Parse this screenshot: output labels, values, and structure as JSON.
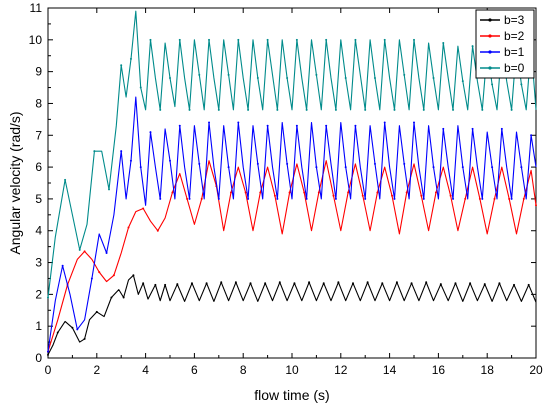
{
  "chart_data": {
    "type": "line",
    "title": "",
    "xlabel": "flow time (s)",
    "ylabel": "Angular velocity (rad/s)",
    "xlim": [
      0,
      20
    ],
    "ylim": [
      0,
      11
    ],
    "xticks": [
      0,
      2,
      4,
      6,
      8,
      10,
      12,
      14,
      16,
      18,
      20
    ],
    "yticks": [
      0,
      1,
      2,
      3,
      4,
      5,
      6,
      7,
      8,
      9,
      10,
      11
    ],
    "grid": false,
    "legend": {
      "position": "top-right"
    },
    "series": [
      {
        "name": "b=3",
        "color": "#000000",
        "x": [
          0,
          0.2,
          0.4,
          0.7,
          1.0,
          1.3,
          1.5,
          1.7,
          2.0,
          2.3,
          2.6,
          2.9,
          3.1,
          3.3,
          3.5,
          3.7,
          3.9,
          4.1,
          4.4,
          4.6,
          4.8,
          5.0,
          5.3,
          5.6,
          5.9,
          6.2,
          6.5,
          6.8,
          7.1,
          7.4,
          7.7,
          8.0,
          8.3,
          8.6,
          8.9,
          9.2,
          9.5,
          9.8,
          10.1,
          10.4,
          10.7,
          11.0,
          11.3,
          11.6,
          11.9,
          12.2,
          12.5,
          12.8,
          13.1,
          13.4,
          13.7,
          14.0,
          14.3,
          14.6,
          14.9,
          15.2,
          15.5,
          15.8,
          16.1,
          16.4,
          16.7,
          17.0,
          17.3,
          17.6,
          17.9,
          18.2,
          18.5,
          18.8,
          19.1,
          19.4,
          19.7,
          20.0
        ],
        "y": [
          0.1,
          0.4,
          0.8,
          1.15,
          0.95,
          0.5,
          0.6,
          1.2,
          1.45,
          1.3,
          1.9,
          2.15,
          1.9,
          2.45,
          2.6,
          2.0,
          2.35,
          1.85,
          2.3,
          1.8,
          2.3,
          1.8,
          2.32,
          1.78,
          2.35,
          1.8,
          2.35,
          1.78,
          2.38,
          1.8,
          2.38,
          1.8,
          2.35,
          1.78,
          2.35,
          1.8,
          2.38,
          1.8,
          2.35,
          1.8,
          2.38,
          1.8,
          2.35,
          1.8,
          2.38,
          1.8,
          2.35,
          1.8,
          2.38,
          1.8,
          2.35,
          1.8,
          2.38,
          1.8,
          2.35,
          1.8,
          2.38,
          1.8,
          2.32,
          1.8,
          2.35,
          1.78,
          2.35,
          1.8,
          2.32,
          1.78,
          2.35,
          1.8,
          2.3,
          1.78,
          2.3,
          1.75
        ]
      },
      {
        "name": "b=2",
        "color": "#ff0000",
        "x": [
          0,
          0.4,
          0.8,
          1.2,
          1.5,
          1.8,
          2.1,
          2.4,
          2.7,
          3.0,
          3.3,
          3.6,
          3.9,
          4.2,
          4.5,
          4.8,
          5.1,
          5.4,
          5.7,
          6.0,
          6.3,
          6.6,
          6.9,
          7.2,
          7.5,
          7.8,
          8.1,
          8.4,
          8.7,
          9.0,
          9.3,
          9.6,
          9.9,
          10.2,
          10.5,
          10.8,
          11.1,
          11.4,
          11.7,
          12.0,
          12.3,
          12.6,
          12.9,
          13.2,
          13.5,
          13.8,
          14.1,
          14.4,
          14.7,
          15.0,
          15.3,
          15.6,
          15.9,
          16.2,
          16.5,
          16.8,
          17.1,
          17.4,
          17.7,
          18.0,
          18.3,
          18.6,
          18.9,
          19.2,
          19.5,
          19.8,
          20.0
        ],
        "y": [
          0.2,
          1.2,
          2.3,
          3.1,
          3.35,
          3.1,
          2.7,
          2.4,
          2.6,
          3.3,
          4.1,
          4.6,
          4.7,
          4.3,
          4.0,
          4.4,
          5.2,
          5.8,
          5.0,
          4.2,
          5.0,
          6.2,
          5.4,
          4.0,
          5.2,
          6.0,
          5.2,
          4.0,
          5.2,
          6.0,
          5.1,
          3.9,
          5.2,
          6.1,
          5.2,
          4.0,
          5.2,
          6.2,
          5.1,
          4.0,
          5.2,
          6.1,
          5.1,
          4.0,
          5.2,
          6.0,
          5.1,
          3.9,
          5.2,
          6.1,
          5.1,
          4.0,
          5.2,
          6.0,
          5.1,
          4.0,
          5.0,
          6.0,
          5.0,
          3.9,
          5.0,
          6.0,
          5.0,
          3.9,
          5.0,
          5.9,
          4.8
        ]
      },
      {
        "name": "b=1",
        "color": "#0000ff",
        "x": [
          0,
          0.3,
          0.6,
          0.9,
          1.2,
          1.5,
          1.8,
          2.1,
          2.4,
          2.7,
          3.0,
          3.2,
          3.4,
          3.6,
          3.8,
          4.0,
          4.2,
          4.4,
          4.6,
          4.8,
          5.0,
          5.2,
          5.4,
          5.6,
          5.8,
          6.0,
          6.2,
          6.4,
          6.6,
          6.8,
          7.0,
          7.2,
          7.4,
          7.6,
          7.8,
          8.0,
          8.2,
          8.4,
          8.6,
          8.8,
          9.0,
          9.2,
          9.4,
          9.6,
          9.8,
          10.0,
          10.2,
          10.4,
          10.6,
          10.8,
          11.0,
          11.2,
          11.4,
          11.6,
          11.8,
          12.0,
          12.2,
          12.4,
          12.6,
          12.8,
          13.0,
          13.2,
          13.4,
          13.6,
          13.8,
          14.0,
          14.2,
          14.4,
          14.6,
          14.8,
          15.0,
          15.2,
          15.4,
          15.6,
          15.8,
          16.0,
          16.2,
          16.4,
          16.6,
          16.8,
          17.0,
          17.2,
          17.4,
          17.6,
          17.8,
          18.0,
          18.2,
          18.4,
          18.6,
          18.8,
          19.0,
          19.2,
          19.4,
          19.6,
          19.8,
          20.0
        ],
        "y": [
          0.2,
          1.8,
          2.9,
          2.0,
          0.9,
          1.2,
          2.5,
          3.9,
          3.3,
          4.5,
          6.5,
          5.0,
          6.2,
          8.2,
          6.0,
          4.8,
          7.1,
          6.0,
          5.0,
          7.2,
          6.2,
          5.0,
          7.3,
          6.0,
          5.0,
          7.3,
          6.1,
          5.0,
          7.4,
          6.0,
          5.0,
          7.3,
          6.0,
          5.0,
          7.4,
          6.0,
          5.0,
          7.3,
          6.1,
          5.0,
          7.3,
          6.0,
          5.0,
          7.4,
          6.1,
          5.0,
          7.3,
          6.0,
          5.0,
          7.4,
          6.0,
          5.0,
          7.3,
          6.1,
          5.0,
          7.4,
          6.0,
          5.0,
          7.3,
          6.0,
          5.0,
          7.3,
          6.1,
          5.0,
          7.4,
          6.0,
          5.0,
          7.3,
          6.1,
          5.0,
          7.4,
          6.0,
          5.0,
          7.3,
          6.0,
          5.0,
          7.2,
          6.0,
          5.0,
          7.3,
          6.0,
          5.0,
          7.2,
          6.0,
          5.0,
          7.1,
          6.0,
          5.0,
          7.2,
          6.0,
          5.0,
          7.1,
          6.0,
          5.0,
          7.0,
          6.0
        ]
      },
      {
        "name": "b=0",
        "color": "#008b8b",
        "x": [
          0,
          0.3,
          0.7,
          1.0,
          1.3,
          1.6,
          1.9,
          2.2,
          2.5,
          2.8,
          3.0,
          3.2,
          3.4,
          3.6,
          3.8,
          4.0,
          4.2,
          4.4,
          4.6,
          4.8,
          5.0,
          5.2,
          5.4,
          5.6,
          5.8,
          6.0,
          6.2,
          6.4,
          6.6,
          6.8,
          7.0,
          7.2,
          7.4,
          7.6,
          7.8,
          8.0,
          8.2,
          8.4,
          8.6,
          8.8,
          9.0,
          9.2,
          9.4,
          9.6,
          9.8,
          10.0,
          10.2,
          10.4,
          10.6,
          10.8,
          11.0,
          11.2,
          11.4,
          11.6,
          11.8,
          12.0,
          12.2,
          12.4,
          12.6,
          12.8,
          13.0,
          13.2,
          13.4,
          13.6,
          13.8,
          14.0,
          14.2,
          14.4,
          14.6,
          14.8,
          15.0,
          15.2,
          15.4,
          15.6,
          15.8,
          16.0,
          16.2,
          16.4,
          16.6,
          16.8,
          17.0,
          17.2,
          17.4,
          17.6,
          17.8,
          18.0,
          18.2,
          18.4,
          18.6,
          18.8,
          19.0,
          19.2,
          19.4,
          19.6,
          19.8,
          20.0
        ],
        "y": [
          1.9,
          3.8,
          5.6,
          4.5,
          3.4,
          4.2,
          6.5,
          6.5,
          5.3,
          7.3,
          9.2,
          8.2,
          9.4,
          10.9,
          8.5,
          7.8,
          10.0,
          8.8,
          7.8,
          9.9,
          8.8,
          7.9,
          10.0,
          8.8,
          7.8,
          10.0,
          8.9,
          7.8,
          10.0,
          8.8,
          7.8,
          10.0,
          8.9,
          7.8,
          10.0,
          8.8,
          7.8,
          10.0,
          8.8,
          7.8,
          10.0,
          8.9,
          7.8,
          10.0,
          8.8,
          7.8,
          10.0,
          8.8,
          7.8,
          10.0,
          8.9,
          7.8,
          10.0,
          8.8,
          7.8,
          10.0,
          8.8,
          7.8,
          10.0,
          8.9,
          7.8,
          10.0,
          8.8,
          7.8,
          10.0,
          8.8,
          7.8,
          10.0,
          8.9,
          7.8,
          10.0,
          8.8,
          7.8,
          9.9,
          8.8,
          7.8,
          9.9,
          8.8,
          7.8,
          9.8,
          8.7,
          7.8,
          9.8,
          8.7,
          7.8,
          9.7,
          8.6,
          7.8,
          9.8,
          8.7,
          7.8,
          9.8,
          8.6,
          7.8,
          9.8,
          7.8
        ]
      }
    ]
  }
}
